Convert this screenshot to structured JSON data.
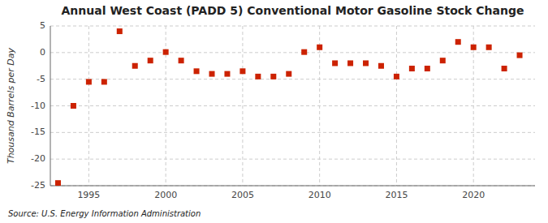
{
  "chart_data": {
    "type": "scatter",
    "title": "Annual West Coast (PADD 5) Conventional Motor Gasoline Stock Change",
    "y_label": "Thousand Barrels per Day",
    "annotations": [
      "Source: U.S. Energy Information Administration"
    ],
    "x": [
      1993,
      1994,
      1995,
      1996,
      1997,
      1998,
      1999,
      2000,
      2001,
      2002,
      2003,
      2004,
      2005,
      2006,
      2007,
      2008,
      2009,
      2010,
      2011,
      2012,
      2013,
      2014,
      2015,
      2016,
      2017,
      2018,
      2019,
      2020,
      2021,
      2022,
      2023
    ],
    "values": [
      -24.5,
      -10.0,
      -5.5,
      -5.5,
      4.0,
      -2.5,
      -1.5,
      0.1,
      -1.5,
      -3.5,
      -4.0,
      -4.0,
      -3.5,
      -4.5,
      -4.5,
      -4.0,
      0.1,
      1.0,
      -2.0,
      -2.0,
      -2.0,
      -2.5,
      -4.5,
      -3.0,
      -3.0,
      -1.5,
      2.0,
      1.0,
      1.0,
      -3.0,
      -0.5
    ],
    "color": "#cc2200",
    "marker": "square",
    "xlim": [
      1992.5,
      2024
    ],
    "xticks": [
      1995,
      2000,
      2005,
      2010,
      2015,
      2020
    ],
    "ylim": [
      -25,
      5
    ],
    "yticks": [
      5,
      0,
      -5,
      -10,
      -15,
      -20,
      -25
    ],
    "grid": true
  }
}
